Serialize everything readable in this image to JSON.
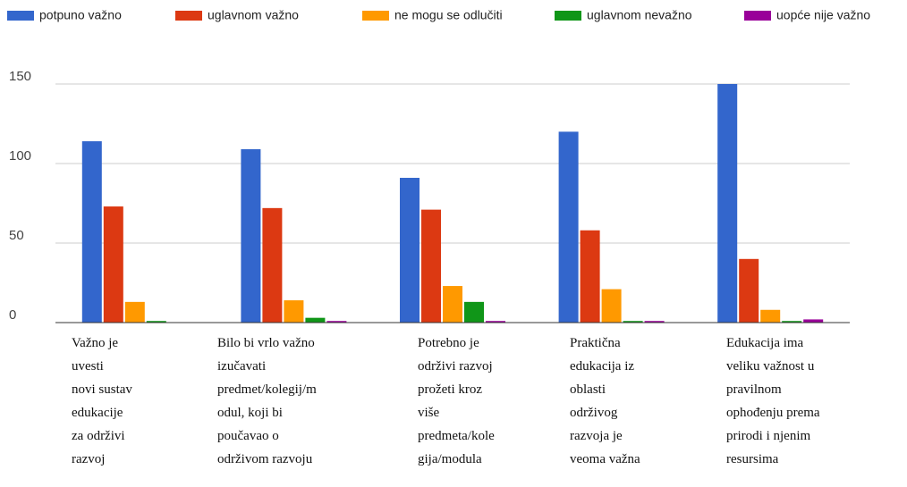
{
  "chart_data": {
    "type": "bar",
    "categories": [
      "Važno je\nuvesti\nnovi sustav\nedukacije\nza održivi\nrazvoj",
      "Bilo bi vrlo važno\nizučavati\npredmet/kolegij/m\nodul, koji bi\npoučavao o\nodrživom razvoju",
      "Potrebno je\nodrživi razvoj\nprožeti kroz\nviše\npredmeta/kole\ngija/modula",
      "Praktična\nedukacija iz\noblasti\nodrživog\nrazvoja je\nveoma važna",
      "Edukacija ima\nveliku važnost u\npravilnom\nophođenju prema\nprirodi i njenim\nresursima"
    ],
    "series": [
      {
        "name": "potpuno važno",
        "color": "#3366cc",
        "values": [
          114,
          109,
          91,
          120,
          150
        ]
      },
      {
        "name": "uglavnom važno",
        "color": "#dc3912",
        "values": [
          73,
          72,
          71,
          58,
          40
        ]
      },
      {
        "name": "ne mogu se odlučiti",
        "color": "#ff9900",
        "values": [
          13,
          14,
          23,
          21,
          8
        ]
      },
      {
        "name": "uglavnom nevažno",
        "color": "#109618",
        "values": [
          1,
          3,
          13,
          1,
          1
        ]
      },
      {
        "name": "uopće nije važno",
        "color": "#990099",
        "values": [
          0,
          1,
          1,
          1,
          2
        ]
      }
    ],
    "ylim": [
      0,
      150
    ],
    "yticks": [
      0,
      50,
      100,
      150
    ],
    "grid": true,
    "legend": "top"
  }
}
